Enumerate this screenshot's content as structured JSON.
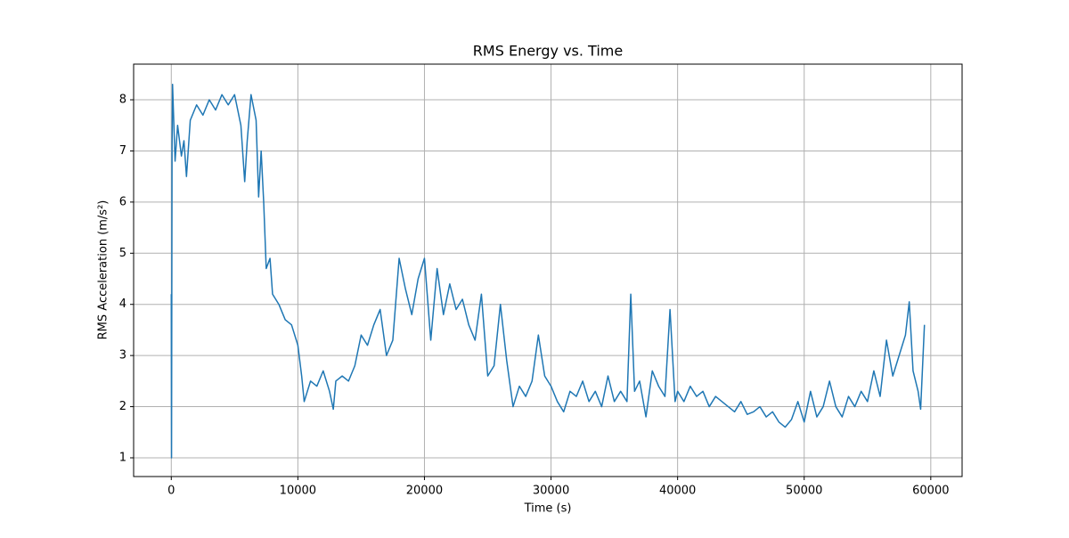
{
  "chart_data": {
    "type": "line",
    "title": "RMS Energy vs. Time",
    "x_label": "Time (s)",
    "y_label": "RMS Acceleration (m/s²)",
    "x": [
      0,
      20,
      60,
      100,
      300,
      500,
      800,
      1000,
      1200,
      1500,
      2000,
      2500,
      3000,
      3500,
      4000,
      4500,
      5000,
      5500,
      5800,
      6000,
      6300,
      6700,
      6900,
      7100,
      7300,
      7500,
      7800,
      8000,
      8500,
      9000,
      9500,
      10000,
      10300,
      10500,
      11000,
      11500,
      12000,
      12500,
      12800,
      13000,
      13500,
      14000,
      14500,
      15000,
      15500,
      16000,
      16500,
      17000,
      17500,
      18000,
      18500,
      19000,
      19500,
      20000,
      20500,
      21000,
      21500,
      22000,
      22500,
      23000,
      23500,
      24000,
      24500,
      25000,
      25500,
      26000,
      26500,
      27000,
      27500,
      28000,
      28500,
      29000,
      29500,
      30000,
      30500,
      31000,
      31500,
      32000,
      32500,
      33000,
      33500,
      34000,
      34500,
      35000,
      35500,
      36000,
      36300,
      36600,
      37000,
      37500,
      38000,
      38500,
      39000,
      39400,
      39800,
      40000,
      40500,
      41000,
      41500,
      42000,
      42500,
      43000,
      43500,
      44000,
      44500,
      45000,
      45500,
      46000,
      46500,
      47000,
      47500,
      48000,
      48500,
      49000,
      49500,
      50000,
      50500,
      51000,
      51500,
      52000,
      52500,
      53000,
      53500,
      54000,
      54500,
      55000,
      55500,
      56000,
      56500,
      57000,
      57500,
      58000,
      58300,
      58600,
      59000,
      59200,
      59500
    ],
    "series": [
      {
        "name": "RMS",
        "color": "#1f77b4",
        "values": [
          4.2,
          1.0,
          7.0,
          8.3,
          6.8,
          7.5,
          6.9,
          7.2,
          6.5,
          7.6,
          7.9,
          7.7,
          8.0,
          7.8,
          8.1,
          7.9,
          8.1,
          7.5,
          6.4,
          7.2,
          8.1,
          7.6,
          6.1,
          7.0,
          6.0,
          4.7,
          4.9,
          4.2,
          4.0,
          3.7,
          3.6,
          3.2,
          2.6,
          2.1,
          2.5,
          2.4,
          2.7,
          2.3,
          1.95,
          2.5,
          2.6,
          2.5,
          2.8,
          3.4,
          3.2,
          3.6,
          3.9,
          3.0,
          3.3,
          4.9,
          4.3,
          3.8,
          4.5,
          4.9,
          3.3,
          4.7,
          3.8,
          4.4,
          3.9,
          4.1,
          3.6,
          3.3,
          4.2,
          2.6,
          2.8,
          4.0,
          2.9,
          2.0,
          2.4,
          2.2,
          2.5,
          3.4,
          2.6,
          2.4,
          2.1,
          1.9,
          2.3,
          2.2,
          2.5,
          2.1,
          2.3,
          2.0,
          2.6,
          2.1,
          2.3,
          2.1,
          4.2,
          2.3,
          2.5,
          1.8,
          2.7,
          2.4,
          2.2,
          3.9,
          2.1,
          2.3,
          2.1,
          2.4,
          2.2,
          2.3,
          2.0,
          2.2,
          2.1,
          2.0,
          1.9,
          2.1,
          1.85,
          1.9,
          2.0,
          1.8,
          1.9,
          1.7,
          1.6,
          1.75,
          2.1,
          1.7,
          2.3,
          1.8,
          2.0,
          2.5,
          2.0,
          1.8,
          2.2,
          2.0,
          2.3,
          2.1,
          2.7,
          2.2,
          3.3,
          2.6,
          3.0,
          3.4,
          4.05,
          2.7,
          2.3,
          1.95,
          3.6
        ]
      }
    ],
    "xlim": [
      -2975,
      62475
    ],
    "xticks": [
      0,
      10000,
      20000,
      30000,
      40000,
      50000,
      60000
    ],
    "ylim": [
      0.634,
      8.697
    ],
    "yticks": [
      1,
      2,
      3,
      4,
      5,
      6,
      7,
      8
    ],
    "grid": true
  }
}
